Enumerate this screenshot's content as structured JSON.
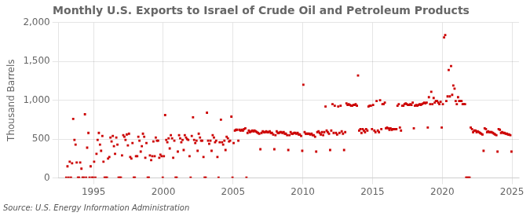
{
  "chart_data": {
    "type": "scatter",
    "title": "Monthly U.S. Exports to Israel of Crude Oil and Petroleum Products",
    "ylabel": "Thousand Barrels",
    "source": "Source: U.S. Energy Information Administration",
    "color": "#cc0000",
    "marker": "square",
    "grid": true,
    "ylim": [
      0,
      2000
    ],
    "yticks": [
      0,
      500,
      {
        "value": 1000,
        "label": "1,000"
      },
      {
        "value": 1500,
        "label": "1,500"
      },
      {
        "value": 2000,
        "label": "2,000"
      }
    ],
    "xlim": [
      1992.5,
      2025.5
    ],
    "xticks": [
      1995,
      2000,
      2005,
      2010,
      2015,
      2020,
      2025
    ],
    "x": [
      1993.04,
      1993.13,
      1993.21,
      1993.29,
      1993.38,
      1993.46,
      1993.54,
      1993.63,
      1993.71,
      1993.79,
      1993.88,
      1993.96,
      1994.04,
      1994.13,
      1994.21,
      1994.29,
      1994.38,
      1994.46,
      1994.54,
      1994.63,
      1994.71,
      1994.79,
      1994.88,
      1994.96,
      1995.04,
      1995.13,
      1995.21,
      1995.29,
      1995.38,
      1995.46,
      1995.54,
      1995.63,
      1995.71,
      1995.79,
      1995.88,
      1995.96,
      1996.04,
      1996.13,
      1996.21,
      1996.29,
      1996.38,
      1996.46,
      1996.54,
      1996.63,
      1996.71,
      1996.79,
      1996.88,
      1996.96,
      1997.04,
      1997.13,
      1997.21,
      1997.29,
      1997.38,
      1997.46,
      1997.54,
      1997.63,
      1997.71,
      1997.79,
      1997.88,
      1997.96,
      1998.04,
      1998.13,
      1998.21,
      1998.29,
      1998.38,
      1998.46,
      1998.54,
      1998.63,
      1998.71,
      1998.79,
      1998.88,
      1998.96,
      1999.04,
      1999.13,
      1999.21,
      1999.29,
      1999.38,
      1999.46,
      1999.54,
      1999.63,
      1999.71,
      1999.79,
      1999.88,
      1999.96,
      2000.04,
      2000.13,
      2000.21,
      2000.29,
      2000.38,
      2000.46,
      2000.54,
      2000.63,
      2000.71,
      2000.79,
      2000.88,
      2000.96,
      2001.04,
      2001.13,
      2001.21,
      2001.29,
      2001.38,
      2001.46,
      2001.54,
      2001.63,
      2001.71,
      2001.79,
      2001.88,
      2001.96,
      2002.04,
      2002.13,
      2002.21,
      2002.29,
      2002.38,
      2002.46,
      2002.54,
      2002.63,
      2002.71,
      2002.79,
      2002.88,
      2002.96,
      2003.04,
      2003.13,
      2003.21,
      2003.29,
      2003.38,
      2003.46,
      2003.54,
      2003.63,
      2003.71,
      2003.79,
      2003.88,
      2003.96,
      2004.04,
      2004.13,
      2004.21,
      2004.29,
      2004.38,
      2004.46,
      2004.54,
      2004.63,
      2004.71,
      2004.79,
      2004.88,
      2004.96,
      2005.04,
      2005.13,
      2005.21,
      2005.29,
      2005.38,
      2005.46,
      2005.54,
      2005.63,
      2005.71,
      2005.79,
      2005.88,
      2005.96,
      2006.04,
      2006.13,
      2006.21,
      2006.29,
      2006.38,
      2006.46,
      2006.54,
      2006.63,
      2006.71,
      2006.79,
      2006.88,
      2006.96,
      2007.04,
      2007.13,
      2007.21,
      2007.29,
      2007.38,
      2007.46,
      2007.54,
      2007.63,
      2007.71,
      2007.79,
      2007.88,
      2007.96,
      2008.04,
      2008.13,
      2008.21,
      2008.29,
      2008.38,
      2008.46,
      2008.54,
      2008.63,
      2008.71,
      2008.79,
      2008.88,
      2008.96,
      2009.04,
      2009.13,
      2009.21,
      2009.29,
      2009.38,
      2009.46,
      2009.54,
      2009.63,
      2009.71,
      2009.79,
      2009.88,
      2009.96,
      2010.04,
      2010.13,
      2010.21,
      2010.29,
      2010.38,
      2010.46,
      2010.54,
      2010.63,
      2010.71,
      2010.79,
      2010.88,
      2010.96,
      2011.04,
      2011.13,
      2011.21,
      2011.29,
      2011.38,
      2011.46,
      2011.54,
      2011.63,
      2011.71,
      2011.79,
      2011.88,
      2011.96,
      2012.04,
      2012.13,
      2012.21,
      2012.29,
      2012.38,
      2012.46,
      2012.54,
      2012.63,
      2012.71,
      2012.79,
      2012.88,
      2012.96,
      2013.04,
      2013.13,
      2013.21,
      2013.29,
      2013.38,
      2013.46,
      2013.54,
      2013.63,
      2013.71,
      2013.79,
      2013.88,
      2013.96,
      2014.04,
      2014.13,
      2014.21,
      2014.29,
      2014.38,
      2014.46,
      2014.54,
      2014.63,
      2014.71,
      2014.79,
      2014.88,
      2014.96,
      2015.04,
      2015.13,
      2015.21,
      2015.29,
      2015.38,
      2015.46,
      2015.54,
      2015.63,
      2015.71,
      2015.79,
      2015.88,
      2015.96,
      2016.04,
      2016.13,
      2016.21,
      2016.29,
      2016.38,
      2016.46,
      2016.54,
      2016.63,
      2016.71,
      2016.79,
      2016.88,
      2016.96,
      2017.04,
      2017.13,
      2017.21,
      2017.29,
      2017.38,
      2017.46,
      2017.54,
      2017.63,
      2017.71,
      2017.79,
      2017.88,
      2017.96,
      2018.04,
      2018.13,
      2018.21,
      2018.29,
      2018.38,
      2018.46,
      2018.54,
      2018.63,
      2018.71,
      2018.79,
      2018.88,
      2018.96,
      2019.04,
      2019.13,
      2019.21,
      2019.29,
      2019.38,
      2019.46,
      2019.54,
      2019.63,
      2019.71,
      2019.79,
      2019.88,
      2019.96,
      2020.04,
      2020.13,
      2020.21,
      2020.29,
      2020.38,
      2020.46,
      2020.54,
      2020.63,
      2020.71,
      2020.79,
      2020.88,
      2020.96,
      2021.04,
      2021.13,
      2021.21,
      2021.29,
      2021.38,
      2021.46,
      2021.54,
      2021.63,
      2021.71,
      2021.79,
      2021.88,
      2021.96,
      2022.04,
      2022.13,
      2022.21,
      2022.29,
      2022.38,
      2022.46,
      2022.54,
      2022.63,
      2022.71,
      2022.79,
      2022.88,
      2022.96,
      2023.04,
      2023.13,
      2023.21,
      2023.29,
      2023.38,
      2023.46,
      2023.54,
      2023.63,
      2023.71,
      2023.79,
      2023.88,
      2023.96,
      2024.04,
      2024.13,
      2024.21,
      2024.29,
      2024.38,
      2024.46,
      2024.54,
      2024.63,
      2024.71,
      2024.79,
      2024.88,
      2024.96
    ],
    "values": [
      5,
      150,
      5,
      210,
      5,
      190,
      760,
      490,
      430,
      200,
      5,
      5,
      200,
      120,
      5,
      5,
      820,
      5,
      390,
      580,
      5,
      150,
      5,
      5,
      210,
      5,
      310,
      490,
      580,
      430,
      350,
      540,
      210,
      5,
      5,
      5,
      250,
      270,
      520,
      470,
      540,
      410,
      310,
      520,
      430,
      5,
      5,
      5,
      290,
      550,
      530,
      490,
      560,
      420,
      570,
      270,
      250,
      450,
      5,
      5,
      280,
      280,
      530,
      480,
      340,
      410,
      570,
      530,
      260,
      450,
      5,
      5,
      290,
      230,
      280,
      470,
      280,
      520,
      480,
      480,
      260,
      300,
      280,
      5,
      280,
      810,
      490,
      460,
      510,
      380,
      550,
      510,
      260,
      480,
      5,
      5,
      340,
      550,
      510,
      460,
      490,
      360,
      550,
      520,
      500,
      490,
      280,
      5,
      540,
      780,
      490,
      450,
      480,
      350,
      570,
      520,
      480,
      480,
      270,
      5,
      5,
      840,
      480,
      440,
      480,
      350,
      550,
      520,
      460,
      480,
      270,
      5,
      460,
      750,
      460,
      430,
      480,
      360,
      530,
      510,
      470,
      480,
      790,
      5,
      450,
      610,
      620,
      620,
      480,
      620,
      610,
      620,
      610,
      630,
      640,
      5,
      580,
      610,
      590,
      600,
      610,
      600,
      610,
      600,
      590,
      580,
      570,
      370,
      580,
      600,
      590,
      590,
      600,
      590,
      590,
      600,
      580,
      580,
      560,
      370,
      550,
      600,
      580,
      580,
      590,
      590,
      580,
      590,
      570,
      570,
      550,
      360,
      550,
      590,
      570,
      570,
      580,
      580,
      570,
      580,
      560,
      560,
      540,
      350,
      1200,
      590,
      570,
      570,
      570,
      570,
      560,
      570,
      550,
      550,
      530,
      340,
      590,
      600,
      580,
      560,
      590,
      550,
      590,
      920,
      610,
      590,
      570,
      360,
      610,
      950,
      580,
      930,
      580,
      560,
      920,
      580,
      930,
      600,
      570,
      360,
      590,
      960,
      940,
      950,
      940,
      930,
      930,
      940,
      940,
      950,
      930,
      1320,
      610,
      630,
      580,
      630,
      610,
      590,
      630,
      610,
      920,
      930,
      930,
      630,
      940,
      610,
      590,
      990,
      610,
      590,
      1000,
      630,
      950,
      950,
      970,
      640,
      650,
      640,
      620,
      640,
      620,
      630,
      630,
      630,
      630,
      930,
      950,
      650,
      610,
      930,
      930,
      950,
      960,
      950,
      940,
      940,
      950,
      940,
      970,
      640,
      930,
      940,
      930,
      940,
      950,
      940,
      950,
      960,
      970,
      960,
      970,
      650,
      1040,
      950,
      1110,
      950,
      1030,
      970,
      990,
      990,
      970,
      950,
      980,
      650,
      950,
      1810,
      1840,
      990,
      1050,
      1390,
      1050,
      1440,
      1070,
      1190,
      1150,
      990,
      950,
      1040,
      990,
      990,
      990,
      950,
      950,
      950,
      5,
      5,
      5,
      5,
      650,
      630,
      590,
      610,
      610,
      590,
      600,
      590,
      580,
      570,
      560,
      350,
      640,
      630,
      590,
      600,
      590,
      590,
      590,
      580,
      570,
      560,
      550,
      340,
      630,
      620,
      580,
      590,
      580,
      580,
      570,
      570,
      560,
      560,
      550,
      340
    ]
  }
}
